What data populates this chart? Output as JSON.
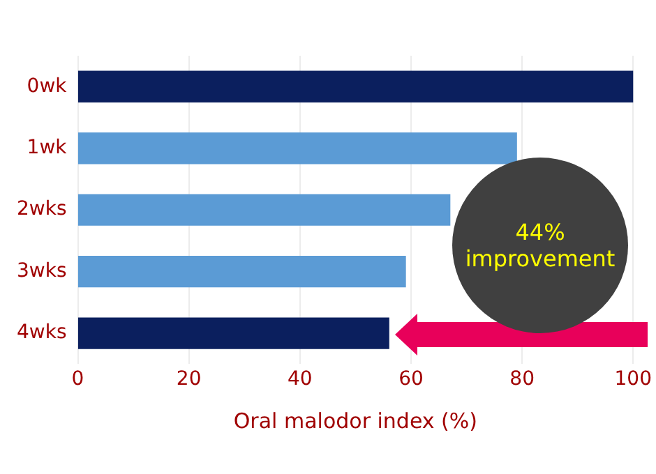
{
  "chart_data": {
    "type": "bar",
    "orientation": "horizontal",
    "xlabel": "Oral malodor index (%)",
    "categories": [
      "0wk",
      "1wk",
      "2wks",
      "3wks",
      "4wks"
    ],
    "values": [
      100,
      79,
      67,
      59,
      56
    ],
    "colors": [
      "#0b1f5e",
      "#5b9bd5",
      "#5b9bd5",
      "#5b9bd5",
      "#0b1f5e"
    ],
    "xlim": [
      0,
      100
    ],
    "xticks": [
      0,
      20,
      40,
      60,
      80,
      100
    ],
    "grid": "x",
    "legend": false,
    "annotations": [
      "44% improvement"
    ]
  }
}
